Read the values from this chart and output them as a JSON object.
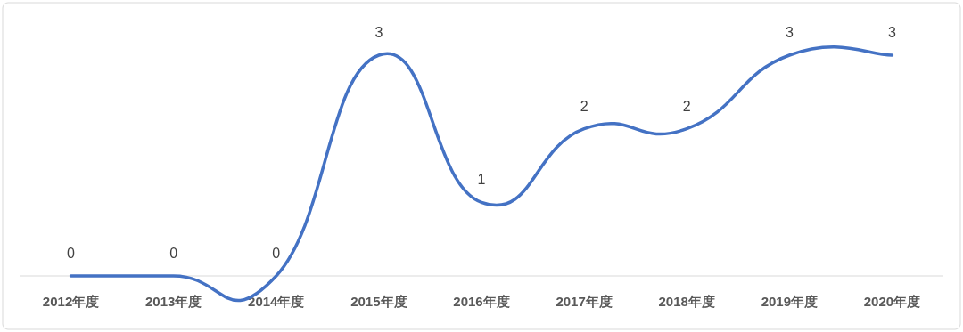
{
  "chart_data": {
    "type": "line",
    "categories": [
      "2012年度",
      "2013年度",
      "2014年度",
      "2015年度",
      "2016年度",
      "2017年度",
      "2018年度",
      "2019年度",
      "2020年度"
    ],
    "series": [
      {
        "color": "#4472c4",
        "values": [
          0,
          0,
          0,
          3,
          1,
          2,
          2,
          3,
          3
        ]
      }
    ],
    "data_labels": true
  }
}
